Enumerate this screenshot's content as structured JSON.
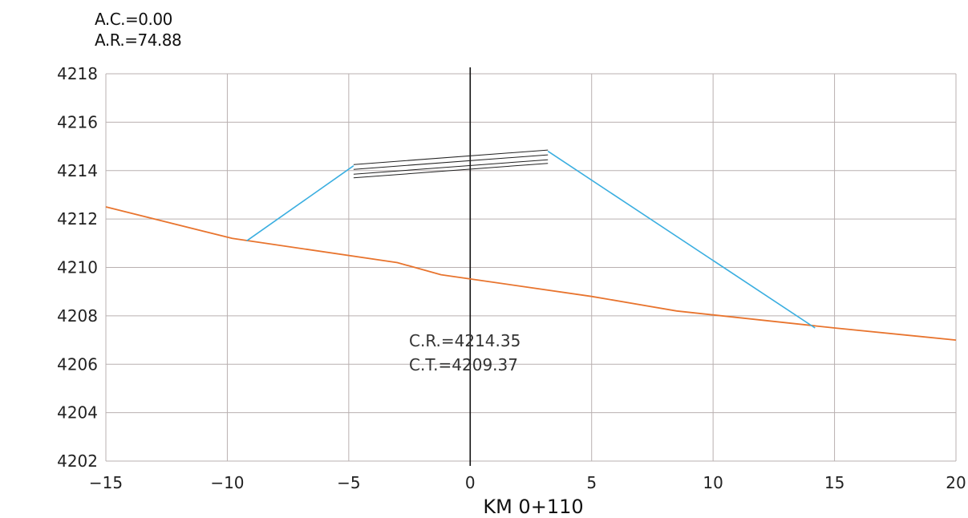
{
  "header": {
    "ac": "A.C.=0.00",
    "ar": "A.R.=74.88"
  },
  "chart_data": {
    "type": "line",
    "title": "",
    "xlabel": "KM 0+110",
    "ylabel": "",
    "xlim": [
      -15,
      20
    ],
    "ylim": [
      4202,
      4218
    ],
    "x_ticks": [
      -15,
      -10,
      -5,
      0,
      5,
      10,
      15,
      20
    ],
    "y_ticks": [
      4202,
      4204,
      4206,
      4208,
      4210,
      4212,
      4214,
      4216,
      4218
    ],
    "grid": true,
    "annotations": [
      "C.R.=4214.35",
      "C.T.=4209.37"
    ],
    "colors": {
      "terrain": "#e8742e",
      "slope": "#3aaee0",
      "pavement": "#222222",
      "grid": "#b9b0b0",
      "axis": "#111111"
    },
    "series": [
      {
        "role": "terrain",
        "points": [
          [
            -15,
            4212.5
          ],
          [
            -9.8,
            4211.2
          ],
          [
            -3,
            4210.2
          ],
          [
            -1.2,
            4209.7
          ],
          [
            5,
            4208.8
          ],
          [
            8.5,
            4208.2
          ],
          [
            15,
            4207.5
          ],
          [
            20,
            4207.0
          ]
        ]
      },
      {
        "role": "slope-left",
        "points": [
          [
            -9.2,
            4211.1
          ],
          [
            -4.8,
            4214.2
          ]
        ]
      },
      {
        "role": "slope-right",
        "points": [
          [
            3.2,
            4214.8
          ],
          [
            14.2,
            4207.5
          ]
        ]
      },
      {
        "role": "pavement",
        "lines": [
          [
            [
              -4.8,
              4214.25
            ],
            [
              3.2,
              4214.85
            ]
          ],
          [
            [
              -4.8,
              4214.05
            ],
            [
              3.2,
              4214.65
            ]
          ],
          [
            [
              -4.8,
              4213.85
            ],
            [
              3.2,
              4214.45
            ]
          ],
          [
            [
              -4.8,
              4213.7
            ],
            [
              3.2,
              4214.3
            ]
          ]
        ]
      }
    ]
  }
}
